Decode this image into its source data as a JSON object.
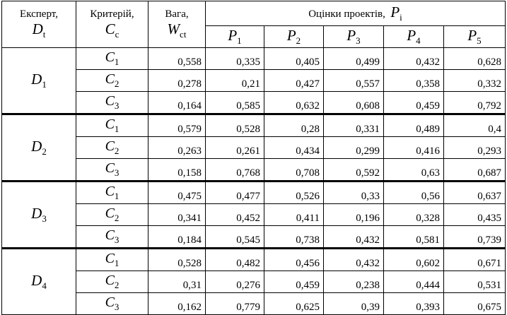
{
  "header": {
    "expert": {
      "text": "Експерт,",
      "symbol": "D",
      "sub": "t"
    },
    "criterion": {
      "text": "Критерій,",
      "symbol": "C",
      "sub": "c"
    },
    "weight": {
      "text": "Вага,",
      "symbol": "W",
      "sub": "ct"
    },
    "scores": {
      "text": "Оцінки проектів,",
      "symbol": "P",
      "sub": "i"
    },
    "projects": [
      {
        "symbol": "P",
        "sub": "1"
      },
      {
        "symbol": "P",
        "sub": "2"
      },
      {
        "symbol": "P",
        "sub": "3"
      },
      {
        "symbol": "P",
        "sub": "4"
      },
      {
        "symbol": "P",
        "sub": "5"
      }
    ]
  },
  "groups": [
    {
      "expert": {
        "symbol": "D",
        "sub": "1"
      },
      "rows": [
        {
          "criterion": {
            "symbol": "C",
            "sub": "1"
          },
          "weight": "0,558",
          "scores": [
            "0,335",
            "0,405",
            "0,499",
            "0,432",
            "0,628"
          ]
        },
        {
          "criterion": {
            "symbol": "C",
            "sub": "2"
          },
          "weight": "0,278",
          "scores": [
            "0,21",
            "0,427",
            "0,557",
            "0,358",
            "0,332"
          ]
        },
        {
          "criterion": {
            "symbol": "C",
            "sub": "3"
          },
          "weight": "0,164",
          "scores": [
            "0,585",
            "0,632",
            "0,608",
            "0,459",
            "0,792"
          ]
        }
      ]
    },
    {
      "expert": {
        "symbol": "D",
        "sub": "2"
      },
      "rows": [
        {
          "criterion": {
            "symbol": "C",
            "sub": "1"
          },
          "weight": "0,579",
          "scores": [
            "0,528",
            "0,28",
            "0,331",
            "0,489",
            "0,4"
          ]
        },
        {
          "criterion": {
            "symbol": "C",
            "sub": "2"
          },
          "weight": "0,263",
          "scores": [
            "0,261",
            "0,434",
            "0,299",
            "0,416",
            "0,293"
          ]
        },
        {
          "criterion": {
            "symbol": "C",
            "sub": "3"
          },
          "weight": "0,158",
          "scores": [
            "0,768",
            "0,708",
            "0,592",
            "0,63",
            "0,687"
          ]
        }
      ]
    },
    {
      "expert": {
        "symbol": "D",
        "sub": "3"
      },
      "rows": [
        {
          "criterion": {
            "symbol": "C",
            "sub": "1"
          },
          "weight": "0,475",
          "scores": [
            "0,477",
            "0,526",
            "0,33",
            "0,56",
            "0,637"
          ]
        },
        {
          "criterion": {
            "symbol": "C",
            "sub": "2"
          },
          "weight": "0,341",
          "scores": [
            "0,452",
            "0,411",
            "0,196",
            "0,328",
            "0,435"
          ]
        },
        {
          "criterion": {
            "symbol": "C",
            "sub": "3"
          },
          "weight": "0,184",
          "scores": [
            "0,545",
            "0,738",
            "0,432",
            "0,581",
            "0,739"
          ]
        }
      ]
    },
    {
      "expert": {
        "symbol": "D",
        "sub": "4"
      },
      "rows": [
        {
          "criterion": {
            "symbol": "C",
            "sub": "1"
          },
          "weight": "0,528",
          "scores": [
            "0,482",
            "0,456",
            "0,432",
            "0,602",
            "0,671"
          ]
        },
        {
          "criterion": {
            "symbol": "C",
            "sub": "2"
          },
          "weight": "0,31",
          "scores": [
            "0,276",
            "0,459",
            "0,238",
            "0,444",
            "0,531"
          ]
        },
        {
          "criterion": {
            "symbol": "C",
            "sub": "3"
          },
          "weight": "0,162",
          "scores": [
            "0,779",
            "0,625",
            "0,39",
            "0,393",
            "0,675"
          ]
        }
      ]
    }
  ]
}
